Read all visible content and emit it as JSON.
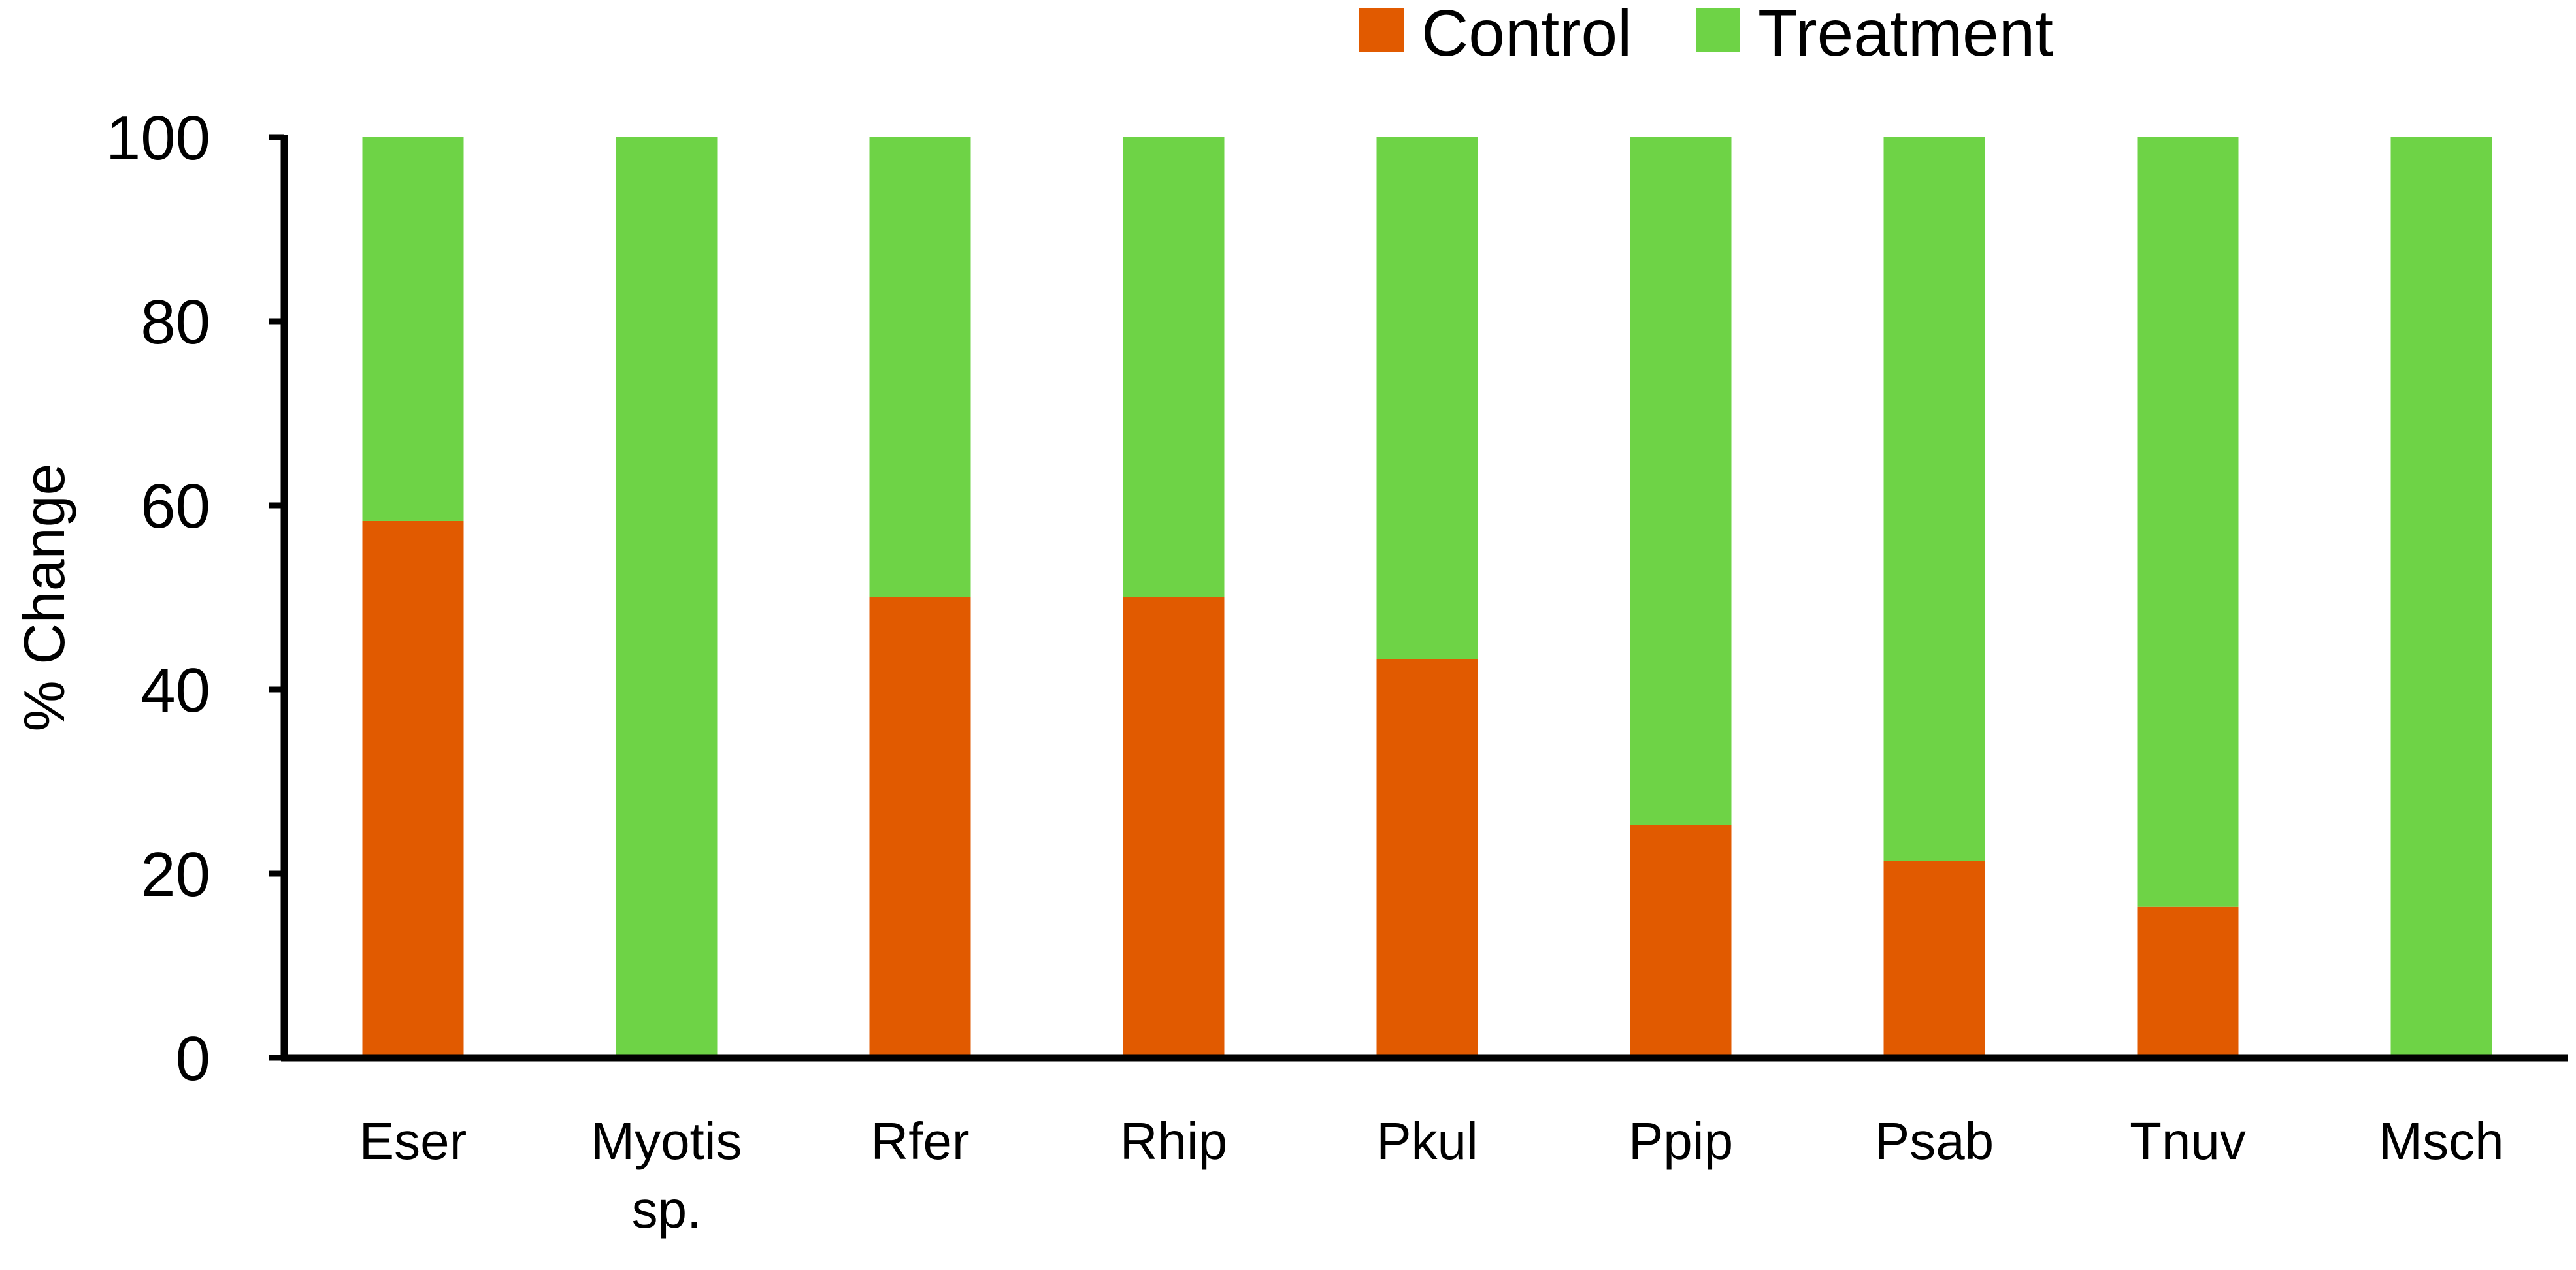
{
  "chart_data": {
    "type": "bar",
    "stacked": true,
    "title": "",
    "xlabel": "",
    "ylabel": "% Change",
    "ylim": [
      0,
      100
    ],
    "yticks": [
      0,
      20,
      40,
      60,
      80,
      100
    ],
    "grid": false,
    "legend_position": "top-right",
    "categories": [
      [
        "Eser"
      ],
      [
        "Myotis",
        "sp."
      ],
      [
        "Rfer"
      ],
      [
        "Rhip"
      ],
      [
        "Pkul"
      ],
      [
        "Ppip"
      ],
      [
        "Psab"
      ],
      [
        "Tnuv"
      ],
      [
        "Msch"
      ]
    ],
    "series": [
      {
        "name": "Control",
        "color": "#E15A00",
        "values": [
          58.3,
          0,
          50,
          50,
          43.3,
          25.3,
          21.4,
          16.4,
          0
        ]
      },
      {
        "name": "Treatment",
        "color": "#6ED346",
        "values": [
          41.7,
          100,
          50,
          50,
          56.7,
          74.7,
          78.6,
          83.6,
          100
        ]
      }
    ]
  }
}
